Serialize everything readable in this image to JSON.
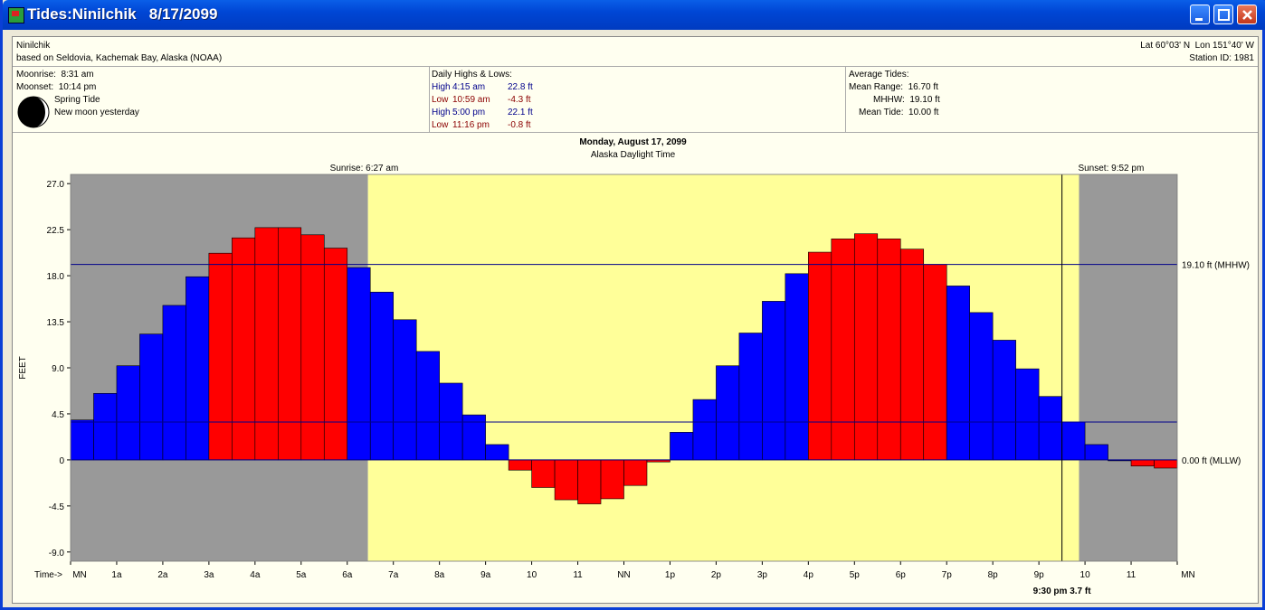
{
  "window": {
    "title": "Tides:Ninilchik   8/17/2099"
  },
  "header": {
    "station": "Ninilchik",
    "based_on": "based on Seldovia, Kachemak Bay, Alaska (NOAA)",
    "latlon": "Lat 60°03' N  Lon 151°40' W",
    "station_id": "Station ID: 1981"
  },
  "moon": {
    "moonrise": "Moonrise:  8:31 am",
    "moonset": "Moonset:  10:14 pm",
    "tide_type": "Spring Tide",
    "phase": "New moon yesterday"
  },
  "highs_lows": {
    "title": "Daily Highs & Lows:",
    "rows": [
      {
        "type": "High",
        "time": "4:15 am",
        "height": "22.8 ft"
      },
      {
        "type": "Low",
        "time": "10:59 am",
        "height": "-4.3 ft"
      },
      {
        "type": "High",
        "time": "5:00 pm",
        "height": "22.1 ft"
      },
      {
        "type": "Low",
        "time": "11:16 pm",
        "height": "-0.8 ft"
      }
    ]
  },
  "average": {
    "title": "Average Tides:",
    "mean_range": "Mean Range:  16.70 ft",
    "mhhw": "MHHW:  19.10 ft",
    "mean_tide": "Mean Tide:  10.00 ft"
  },
  "colors": {
    "night": "#999999",
    "day": "#ffff99",
    "bar_normal": "#0000ff",
    "bar_extreme": "#ff0000",
    "ref_line": "#00008b"
  },
  "chart_data": {
    "type": "bar",
    "title": "Monday, August 17, 2099",
    "subtitle": "Alaska Daylight Time",
    "ylabel": "FEET",
    "ylim": [
      -9.9,
      27.9
    ],
    "yticks": [
      27.0,
      22.5,
      18.0,
      13.5,
      9.0,
      4.5,
      0,
      -4.5,
      -9.0
    ],
    "ytick_labels": [
      "27.0",
      "22.5",
      "18.0",
      "13.5",
      "9.0",
      "4.5",
      "0",
      "-4.5",
      "-9.0"
    ],
    "xlim_hours": [
      0,
      24
    ],
    "xtick_prefix": "Time->",
    "xticks": [
      "MN",
      "1a",
      "2a",
      "3a",
      "4a",
      "5a",
      "6a",
      "7a",
      "8a",
      "9a",
      "10",
      "11",
      "NN",
      "1p",
      "2p",
      "3p",
      "4p",
      "5p",
      "6p",
      "7p",
      "8p",
      "9p",
      "10",
      "11",
      "MN"
    ],
    "sunrise_hour": 6.45,
    "sunset_hour": 21.87,
    "sunrise_label": "Sunrise: 6:27 am",
    "sunset_label": "Sunset: 9:52 pm",
    "bar_hours": [
      0,
      0.5,
      1,
      1.5,
      2,
      2.5,
      3,
      3.5,
      4,
      4.5,
      5,
      5.5,
      6,
      6.5,
      7,
      7.5,
      8,
      8.5,
      9,
      9.5,
      10,
      10.5,
      11,
      11.5,
      12,
      12.5,
      13,
      13.5,
      14,
      14.5,
      15,
      15.5,
      16,
      16.5,
      17,
      17.5,
      18,
      18.5,
      19,
      19.5,
      20,
      20.5,
      21,
      21.5,
      22,
      22.5,
      23,
      23.5
    ],
    "values": [
      3.9,
      6.5,
      9.2,
      12.3,
      15.1,
      17.9,
      20.2,
      21.7,
      22.7,
      22.7,
      22.0,
      20.7,
      18.8,
      16.4,
      13.7,
      10.6,
      7.5,
      4.4,
      1.5,
      -1.0,
      -2.7,
      -3.9,
      -4.3,
      -3.8,
      -2.5,
      -0.2,
      2.7,
      5.9,
      9.2,
      12.4,
      15.5,
      18.2,
      20.3,
      21.6,
      22.1,
      21.6,
      20.6,
      19.1,
      17.0,
      14.4,
      11.7,
      8.9,
      6.2,
      3.7,
      1.5,
      0.0,
      -0.6,
      -0.8
    ],
    "extreme_values": [
      20.2,
      21.7,
      22.7,
      22.7,
      22.0,
      20.7,
      -1.0,
      -2.7,
      -3.9,
      -4.3,
      -3.8,
      -2.5,
      -0.2,
      20.3,
      21.6,
      22.1,
      21.6,
      20.6,
      19.1,
      -0.6,
      -0.8
    ],
    "reference_lines": [
      {
        "value": 19.1,
        "label": "19.10 ft (MHHW)"
      },
      {
        "value": 0,
        "label": "0.00 ft (MLLW)"
      }
    ],
    "cursor": {
      "hour": 21.5,
      "value": 3.7,
      "label": "9:30 pm 3.7 ft"
    }
  }
}
